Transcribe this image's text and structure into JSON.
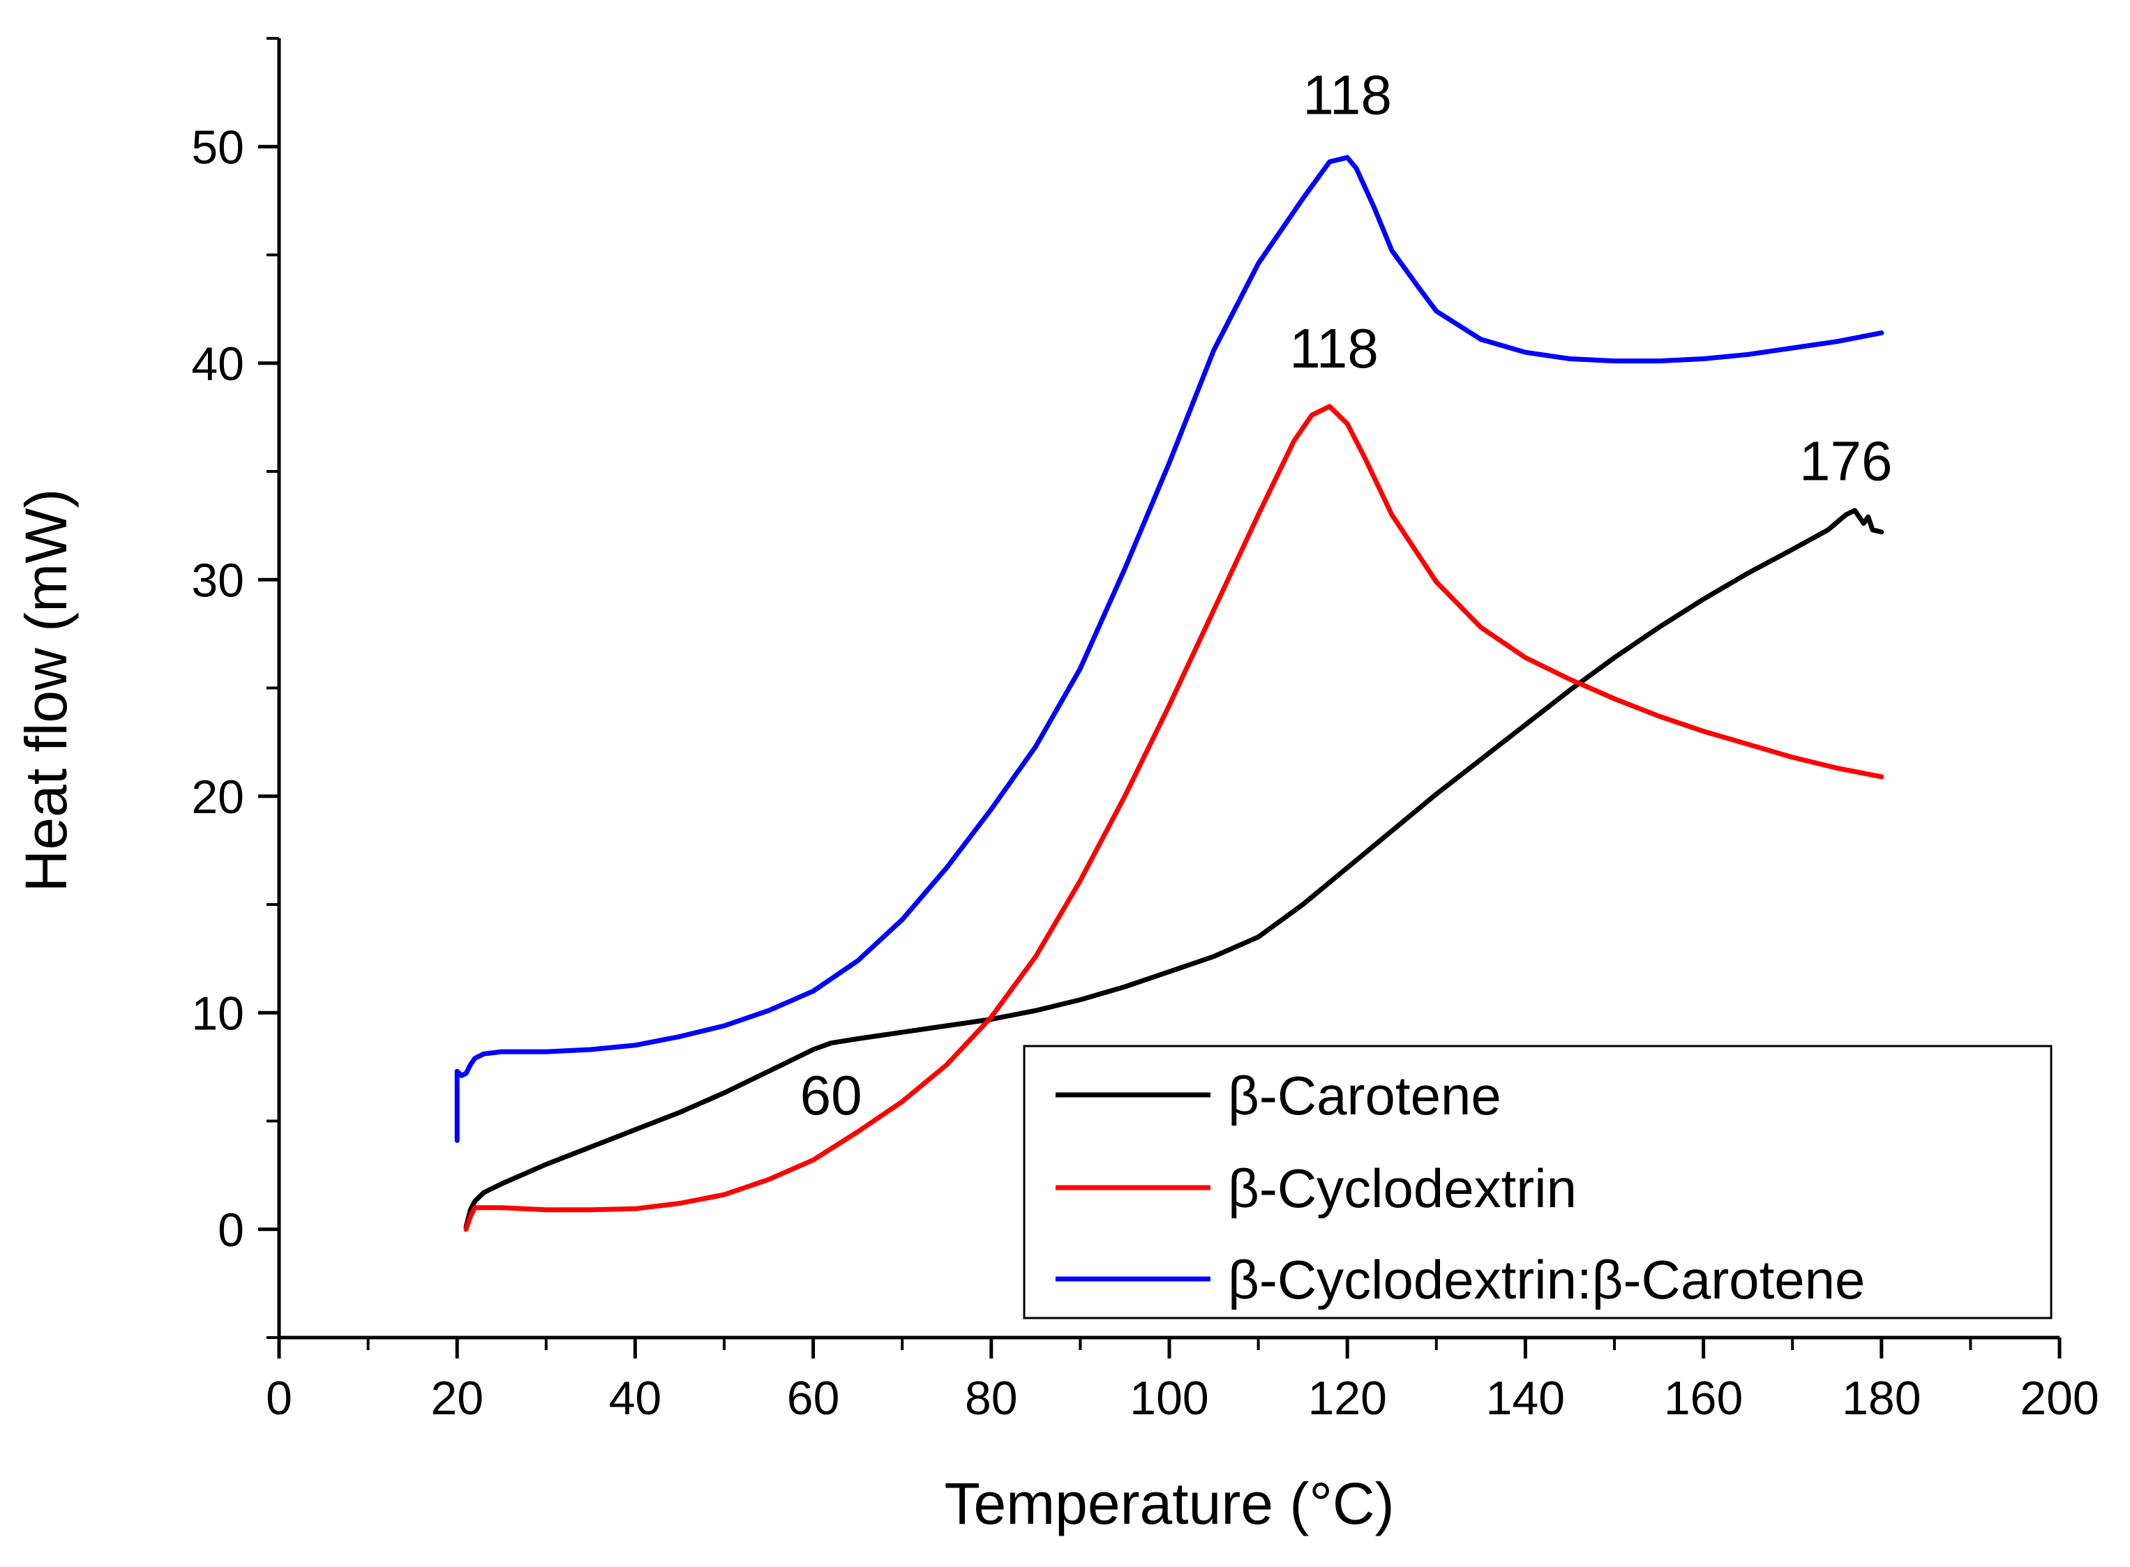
{
  "chart_data": {
    "type": "line",
    "title": "",
    "xlabel": "Temperature (°C)",
    "ylabel": "Heat flow (mW)",
    "xlim": [
      0,
      200
    ],
    "ylim": [
      -5,
      55
    ],
    "xticks": [
      0,
      20,
      40,
      60,
      80,
      100,
      120,
      140,
      160,
      180,
      200
    ],
    "yticks": [
      0,
      10,
      20,
      30,
      40,
      50
    ],
    "xtick_labels": [
      "0",
      "20",
      "40",
      "60",
      "80",
      "100",
      "120",
      "140",
      "160",
      "180",
      "200"
    ],
    "ytick_labels": [
      "0",
      "10",
      "20",
      "30",
      "40",
      "50"
    ],
    "grid": false,
    "legend_position": "bottom-right",
    "series": [
      {
        "name": "β-Carotene",
        "color": "#000000",
        "points": [
          [
            21,
            0.1
          ],
          [
            21.5,
            0.9
          ],
          [
            22,
            1.3
          ],
          [
            23,
            1.7
          ],
          [
            25,
            2.1
          ],
          [
            30,
            3.0
          ],
          [
            35,
            3.8
          ],
          [
            40,
            4.6
          ],
          [
            45,
            5.4
          ],
          [
            50,
            6.3
          ],
          [
            55,
            7.3
          ],
          [
            58,
            7.9
          ],
          [
            60,
            8.3
          ],
          [
            62,
            8.6
          ],
          [
            65,
            8.8
          ],
          [
            70,
            9.1
          ],
          [
            75,
            9.4
          ],
          [
            80,
            9.7
          ],
          [
            85,
            10.1
          ],
          [
            90,
            10.6
          ],
          [
            95,
            11.2
          ],
          [
            100,
            11.9
          ],
          [
            105,
            12.6
          ],
          [
            110,
            13.5
          ],
          [
            115,
            15.0
          ],
          [
            120,
            16.7
          ],
          [
            125,
            18.4
          ],
          [
            130,
            20.1
          ],
          [
            135,
            21.7
          ],
          [
            140,
            23.3
          ],
          [
            145,
            24.9
          ],
          [
            150,
            26.4
          ],
          [
            155,
            27.8
          ],
          [
            160,
            29.1
          ],
          [
            165,
            30.3
          ],
          [
            170,
            31.4
          ],
          [
            174,
            32.3
          ],
          [
            176,
            33.0
          ],
          [
            177,
            33.2
          ],
          [
            178,
            32.6
          ],
          [
            178.5,
            32.9
          ],
          [
            179,
            32.3
          ],
          [
            180,
            32.2
          ]
        ]
      },
      {
        "name": "β-Cyclodextrin",
        "color": "#ff0000",
        "points": [
          [
            21,
            0.0
          ],
          [
            21.5,
            0.6
          ],
          [
            22,
            1.0
          ],
          [
            25,
            1.0
          ],
          [
            30,
            0.9
          ],
          [
            35,
            0.9
          ],
          [
            40,
            0.95
          ],
          [
            45,
            1.2
          ],
          [
            50,
            1.6
          ],
          [
            55,
            2.3
          ],
          [
            60,
            3.2
          ],
          [
            65,
            4.5
          ],
          [
            70,
            5.9
          ],
          [
            75,
            7.6
          ],
          [
            80,
            9.8
          ],
          [
            85,
            12.6
          ],
          [
            90,
            16.1
          ],
          [
            95,
            20.0
          ],
          [
            100,
            24.2
          ],
          [
            105,
            28.6
          ],
          [
            110,
            33.0
          ],
          [
            114,
            36.4
          ],
          [
            116,
            37.6
          ],
          [
            118,
            38.0
          ],
          [
            120,
            37.2
          ],
          [
            122,
            35.6
          ],
          [
            125,
            33.0
          ],
          [
            130,
            29.9
          ],
          [
            135,
            27.8
          ],
          [
            140,
            26.4
          ],
          [
            145,
            25.4
          ],
          [
            150,
            24.5
          ],
          [
            155,
            23.7
          ],
          [
            160,
            23.0
          ],
          [
            165,
            22.4
          ],
          [
            170,
            21.8
          ],
          [
            175,
            21.3
          ],
          [
            180,
            20.9
          ]
        ]
      },
      {
        "name": "β-Cyclodextrin:β-Carotene",
        "color": "#0000ff",
        "points": [
          [
            20,
            4.1
          ],
          [
            20,
            7.3
          ],
          [
            20.5,
            7.1
          ],
          [
            21,
            7.2
          ],
          [
            21.5,
            7.6
          ],
          [
            22,
            7.9
          ],
          [
            23,
            8.1
          ],
          [
            25,
            8.2
          ],
          [
            30,
            8.2
          ],
          [
            35,
            8.3
          ],
          [
            40,
            8.5
          ],
          [
            45,
            8.9
          ],
          [
            50,
            9.4
          ],
          [
            55,
            10.1
          ],
          [
            60,
            11.0
          ],
          [
            65,
            12.4
          ],
          [
            70,
            14.3
          ],
          [
            75,
            16.7
          ],
          [
            80,
            19.4
          ],
          [
            85,
            22.3
          ],
          [
            90,
            25.9
          ],
          [
            95,
            30.5
          ],
          [
            100,
            35.4
          ],
          [
            105,
            40.6
          ],
          [
            110,
            44.6
          ],
          [
            115,
            47.6
          ],
          [
            118,
            49.3
          ],
          [
            120,
            49.5
          ],
          [
            121,
            49.0
          ],
          [
            123,
            47.2
          ],
          [
            125,
            45.2
          ],
          [
            128,
            43.5
          ],
          [
            130,
            42.4
          ],
          [
            135,
            41.1
          ],
          [
            140,
            40.5
          ],
          [
            145,
            40.2
          ],
          [
            150,
            40.1
          ],
          [
            155,
            40.1
          ],
          [
            160,
            40.2
          ],
          [
            165,
            40.4
          ],
          [
            170,
            40.7
          ],
          [
            175,
            41.0
          ],
          [
            180,
            41.4
          ]
        ]
      }
    ],
    "annotations": [
      {
        "text": "118",
        "x": 120,
        "y": 51.5
      },
      {
        "text": "118",
        "x": 118.5,
        "y": 39.8
      },
      {
        "text": "176",
        "x": 176,
        "y": 34.6
      },
      {
        "text": "60",
        "x": 62,
        "y": 5.3
      }
    ]
  }
}
